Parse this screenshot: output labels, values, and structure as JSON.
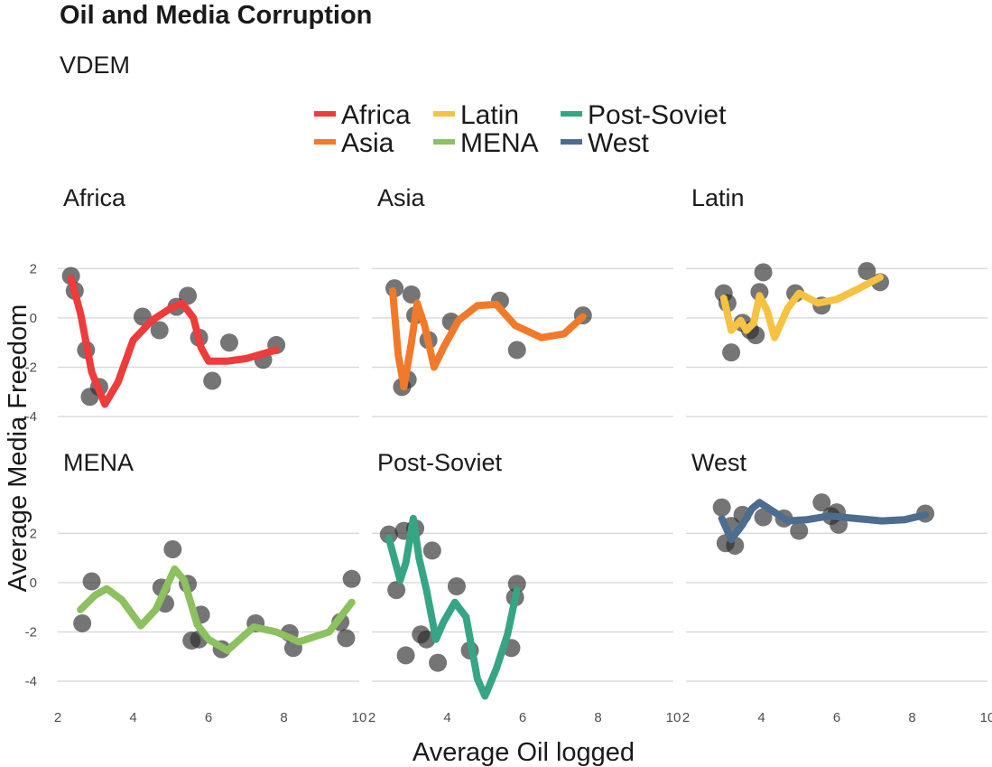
{
  "chart_data": {
    "type": "scatter",
    "title": "Oil and Media Corruption",
    "subtitle": "VDEM",
    "xlabel": "Average Oil logged",
    "ylabel": "Average Media Freedom",
    "xlim": [
      2,
      10
    ],
    "ylim": [
      -5,
      3
    ],
    "x_ticks": [
      2,
      4,
      6,
      8,
      10
    ],
    "y_ticks": [
      -4,
      -2,
      0,
      2
    ],
    "legend_position": "top",
    "legend": [
      {
        "name": "Africa",
        "color": "#EE3B3B"
      },
      {
        "name": "Asia",
        "color": "#F07A2A"
      },
      {
        "name": "Latin",
        "color": "#F5C242"
      },
      {
        "name": "MENA",
        "color": "#8DC05F"
      },
      {
        "name": "Post-Soviet",
        "color": "#36A586"
      },
      {
        "name": "West",
        "color": "#4D6D8F"
      }
    ],
    "panels": [
      {
        "name": "Africa",
        "color": "#EE3B3B",
        "points": [
          [
            2.35,
            1.7
          ],
          [
            2.45,
            1.1
          ],
          [
            2.75,
            -1.3
          ],
          [
            2.85,
            -3.2
          ],
          [
            3.1,
            -2.8
          ],
          [
            4.25,
            0.05
          ],
          [
            4.7,
            -0.5
          ],
          [
            5.15,
            0.45
          ],
          [
            5.45,
            0.9
          ],
          [
            5.75,
            -0.8
          ],
          [
            6.1,
            -2.55
          ],
          [
            6.55,
            -1.0
          ],
          [
            7.45,
            -1.7
          ],
          [
            7.8,
            -1.1
          ]
        ],
        "smooth": [
          [
            2.35,
            1.6
          ],
          [
            2.6,
            0.2
          ],
          [
            2.9,
            -2.2
          ],
          [
            3.25,
            -3.5
          ],
          [
            3.6,
            -2.6
          ],
          [
            4.0,
            -0.9
          ],
          [
            4.5,
            -0.1
          ],
          [
            5.0,
            0.4
          ],
          [
            5.3,
            0.6
          ],
          [
            5.6,
            0.0
          ],
          [
            5.8,
            -1.2
          ],
          [
            6.0,
            -1.75
          ],
          [
            6.5,
            -1.75
          ],
          [
            7.0,
            -1.65
          ],
          [
            7.8,
            -1.3
          ]
        ]
      },
      {
        "name": "Asia",
        "color": "#F07A2A",
        "points": [
          [
            2.6,
            1.2
          ],
          [
            2.8,
            -2.8
          ],
          [
            2.95,
            -2.5
          ],
          [
            3.05,
            0.95
          ],
          [
            3.15,
            0.1
          ],
          [
            3.5,
            -0.9
          ],
          [
            4.1,
            -0.15
          ],
          [
            5.4,
            0.7
          ],
          [
            5.85,
            -1.3
          ],
          [
            7.6,
            0.1
          ]
        ],
        "smooth": [
          [
            2.55,
            1.1
          ],
          [
            2.7,
            -1.5
          ],
          [
            2.85,
            -2.8
          ],
          [
            3.05,
            -1.0
          ],
          [
            3.2,
            0.6
          ],
          [
            3.4,
            -0.3
          ],
          [
            3.65,
            -2.0
          ],
          [
            3.9,
            -1.2
          ],
          [
            4.3,
            -0.1
          ],
          [
            4.8,
            0.5
          ],
          [
            5.3,
            0.55
          ],
          [
            5.8,
            -0.3
          ],
          [
            6.5,
            -0.8
          ],
          [
            7.1,
            -0.65
          ],
          [
            7.6,
            0.05
          ]
        ]
      },
      {
        "name": "Latin",
        "color": "#F5C242",
        "points": [
          [
            3.0,
            1.0
          ],
          [
            3.1,
            0.6
          ],
          [
            3.2,
            -1.4
          ],
          [
            3.5,
            -0.2
          ],
          [
            3.7,
            -0.5
          ],
          [
            3.85,
            -0.7
          ],
          [
            3.95,
            1.05
          ],
          [
            4.05,
            1.85
          ],
          [
            4.9,
            1.0
          ],
          [
            5.6,
            0.5
          ],
          [
            6.8,
            1.9
          ],
          [
            7.15,
            1.45
          ]
        ],
        "smooth": [
          [
            3.0,
            0.8
          ],
          [
            3.2,
            -0.5
          ],
          [
            3.45,
            -0.1
          ],
          [
            3.6,
            -0.5
          ],
          [
            3.8,
            -0.2
          ],
          [
            3.95,
            0.9
          ],
          [
            4.15,
            0.3
          ],
          [
            4.35,
            -0.8
          ],
          [
            4.7,
            0.4
          ],
          [
            5.0,
            1.0
          ],
          [
            5.5,
            0.6
          ],
          [
            6.0,
            0.75
          ],
          [
            6.6,
            1.2
          ],
          [
            7.15,
            1.65
          ]
        ]
      },
      {
        "name": "MENA",
        "color": "#8DC05F",
        "points": [
          [
            2.65,
            -1.65
          ],
          [
            2.9,
            0.05
          ],
          [
            4.75,
            -0.2
          ],
          [
            4.85,
            -0.85
          ],
          [
            5.05,
            1.35
          ],
          [
            5.45,
            -0.05
          ],
          [
            5.55,
            -2.35
          ],
          [
            5.75,
            -2.3
          ],
          [
            5.8,
            -1.3
          ],
          [
            6.35,
            -2.7
          ],
          [
            7.25,
            -1.65
          ],
          [
            8.15,
            -2.05
          ],
          [
            8.25,
            -2.65
          ],
          [
            9.5,
            -1.6
          ],
          [
            9.65,
            -2.25
          ],
          [
            9.8,
            0.15
          ]
        ],
        "smooth": [
          [
            2.6,
            -1.1
          ],
          [
            3.0,
            -0.5
          ],
          [
            3.3,
            -0.25
          ],
          [
            3.7,
            -0.7
          ],
          [
            4.2,
            -1.75
          ],
          [
            4.6,
            -1.1
          ],
          [
            5.1,
            0.55
          ],
          [
            5.35,
            0.1
          ],
          [
            5.7,
            -1.7
          ],
          [
            6.0,
            -2.3
          ],
          [
            6.5,
            -2.75
          ],
          [
            7.2,
            -1.8
          ],
          [
            7.8,
            -2.0
          ],
          [
            8.4,
            -2.4
          ],
          [
            9.2,
            -2.0
          ],
          [
            9.8,
            -0.8
          ]
        ]
      },
      {
        "name": "Post-Soviet",
        "color": "#36A586",
        "points": [
          [
            2.45,
            1.95
          ],
          [
            2.65,
            -0.3
          ],
          [
            2.85,
            2.1
          ],
          [
            2.9,
            -2.95
          ],
          [
            3.15,
            2.2
          ],
          [
            3.3,
            -2.1
          ],
          [
            3.45,
            -2.3
          ],
          [
            3.6,
            1.3
          ],
          [
            3.75,
            -3.25
          ],
          [
            4.25,
            -0.15
          ],
          [
            4.6,
            -2.75
          ],
          [
            5.7,
            -2.65
          ],
          [
            5.8,
            -0.6
          ],
          [
            5.85,
            -0.05
          ]
        ],
        "smooth": [
          [
            2.45,
            1.8
          ],
          [
            2.75,
            0.1
          ],
          [
            2.9,
            0.8
          ],
          [
            3.1,
            2.6
          ],
          [
            3.25,
            1.0
          ],
          [
            3.45,
            -0.3
          ],
          [
            3.7,
            -2.3
          ],
          [
            3.9,
            -1.6
          ],
          [
            4.2,
            -0.8
          ],
          [
            4.5,
            -1.4
          ],
          [
            4.8,
            -3.9
          ],
          [
            5.0,
            -4.6
          ],
          [
            5.3,
            -3.5
          ],
          [
            5.6,
            -2.1
          ],
          [
            5.85,
            -0.3
          ]
        ]
      },
      {
        "name": "West",
        "color": "#4D6D8F",
        "points": [
          [
            2.95,
            3.05
          ],
          [
            3.05,
            1.6
          ],
          [
            3.2,
            2.3
          ],
          [
            3.3,
            1.5
          ],
          [
            3.5,
            2.75
          ],
          [
            4.05,
            2.65
          ],
          [
            4.6,
            2.6
          ],
          [
            5.0,
            2.1
          ],
          [
            5.6,
            3.25
          ],
          [
            5.85,
            2.7
          ],
          [
            6.0,
            2.85
          ],
          [
            6.05,
            2.35
          ],
          [
            8.35,
            2.8
          ]
        ],
        "smooth": [
          [
            2.95,
            2.6
          ],
          [
            3.2,
            1.75
          ],
          [
            3.5,
            2.35
          ],
          [
            3.75,
            3.0
          ],
          [
            3.95,
            3.25
          ],
          [
            4.3,
            2.9
          ],
          [
            4.7,
            2.5
          ],
          [
            5.2,
            2.55
          ],
          [
            5.8,
            2.7
          ],
          [
            6.5,
            2.6
          ],
          [
            7.2,
            2.5
          ],
          [
            7.8,
            2.55
          ],
          [
            8.35,
            2.75
          ]
        ]
      }
    ]
  }
}
